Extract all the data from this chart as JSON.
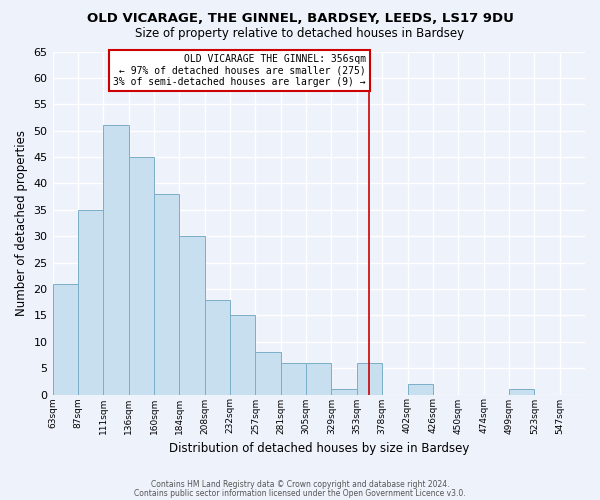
{
  "title": "OLD VICARAGE, THE GINNEL, BARDSEY, LEEDS, LS17 9DU",
  "subtitle": "Size of property relative to detached houses in Bardsey",
  "xlabel": "Distribution of detached houses by size in Bardsey",
  "ylabel": "Number of detached properties",
  "bar_color": "#c8dff0",
  "bar_edge_color": "#7baec8",
  "background_color": "#eef2fb",
  "grid_color": "#ffffff",
  "bin_labels": [
    "63sqm",
    "87sqm",
    "111sqm",
    "136sqm",
    "160sqm",
    "184sqm",
    "208sqm",
    "232sqm",
    "257sqm",
    "281sqm",
    "305sqm",
    "329sqm",
    "353sqm",
    "378sqm",
    "402sqm",
    "426sqm",
    "450sqm",
    "474sqm",
    "499sqm",
    "523sqm",
    "547sqm"
  ],
  "counts": [
    21,
    35,
    51,
    45,
    38,
    30,
    18,
    15,
    8,
    6,
    6,
    1,
    6,
    0,
    2,
    0,
    0,
    0,
    1,
    0,
    0
  ],
  "n_bins": 21,
  "marker_bin": 12,
  "marker_label": "OLD VICARAGE THE GINNEL: 356sqm",
  "marker_line1": "← 97% of detached houses are smaller (275)",
  "marker_line2": "3% of semi-detached houses are larger (9) →",
  "marker_color": "#cc0000",
  "ylim": [
    0,
    65
  ],
  "yticks": [
    0,
    5,
    10,
    15,
    20,
    25,
    30,
    35,
    40,
    45,
    50,
    55,
    60,
    65
  ],
  "footnote1": "Contains HM Land Registry data © Crown copyright and database right 2024.",
  "footnote2": "Contains public sector information licensed under the Open Government Licence v3.0."
}
